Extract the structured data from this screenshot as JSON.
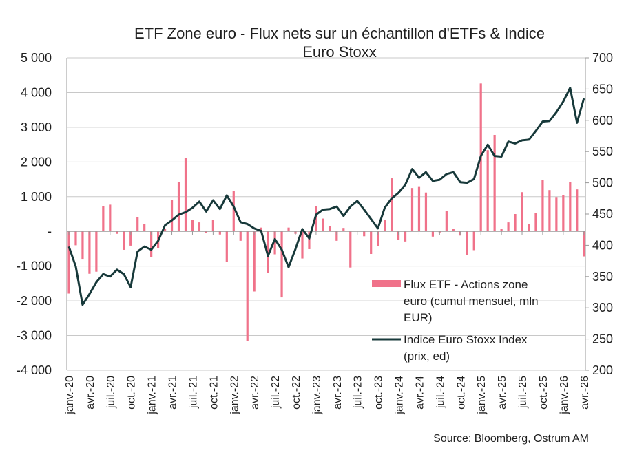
{
  "chart_data": {
    "type": "bar+line",
    "title_line1": "ETF Zone euro - Flux nets sur un échantillon d'ETFs & Indice",
    "title_line2": "Euro Stoxx",
    "source": "Source: Bloomberg, Ostrum AM",
    "grid": true,
    "legend_position": "bottom-right",
    "colors": {
      "bars": "#f0728a",
      "line": "#17393a",
      "grid": "#c8c8c8"
    },
    "left_axis": {
      "range": [
        -4000,
        5000
      ],
      "ticks": [
        5000,
        4000,
        3000,
        2000,
        1000,
        0,
        -1000,
        -2000,
        -3000,
        -4000
      ],
      "tick_labels": [
        "5 000",
        "4 000",
        "3 000",
        "2 000",
        "1 000",
        "-",
        "-1 000",
        "-2 000",
        "-3 000",
        "-4 000"
      ]
    },
    "right_axis": {
      "range": [
        200,
        700
      ],
      "ticks": [
        700,
        650,
        600,
        550,
        500,
        450,
        400,
        350,
        300,
        250,
        200
      ],
      "tick_labels": [
        "700",
        "650",
        "600",
        "550",
        "500",
        "450",
        "400",
        "350",
        "300",
        "250",
        "200"
      ]
    },
    "x_tick_labels": [
      "janv.-20",
      "avr.-20",
      "juil.-20",
      "oct.-20",
      "janv.-21",
      "avr.-21",
      "juil.-21",
      "oct.-21",
      "janv.-22",
      "avr.-22",
      "juil.-22",
      "oct.-22",
      "janv.-23",
      "avr.-23",
      "juil.-23",
      "oct.-23",
      "janv.-24",
      "avr.-24",
      "juil.-24",
      "oct.-24",
      "janv.-25",
      "avr.-25",
      "juil.-25",
      "oct.-25",
      "janv.-26",
      "avr.-26"
    ],
    "x_start": "2020-01",
    "x_end": "2026-04",
    "series": [
      {
        "name": "Flux ETF - Actions zone euro (cumul mensuel, mln EUR)",
        "legend_lines": [
          "Flux ETF - Actions zone",
          "euro (cumul mensuel, mln",
          "EUR)"
        ],
        "type": "bar",
        "axis": "left",
        "values": [
          -1790,
          -400,
          -810,
          -1220,
          -1160,
          730,
          770,
          -70,
          -530,
          -410,
          420,
          210,
          -740,
          -480,
          80,
          910,
          1420,
          2110,
          330,
          260,
          -50,
          340,
          -90,
          -870,
          1160,
          -270,
          -3150,
          -1730,
          110,
          -1200,
          -660,
          -1900,
          110,
          -70,
          -780,
          -510,
          720,
          370,
          145,
          -270,
          100,
          -1040,
          20,
          -140,
          -650,
          -430,
          330,
          1530,
          -250,
          -290,
          1250,
          1300,
          1120,
          -150,
          -30,
          590,
          80,
          -120,
          -670,
          -540,
          4260,
          2340,
          2780,
          80,
          260,
          500,
          1130,
          220,
          520,
          1490,
          1190,
          990,
          1050,
          1430,
          1210,
          -720
        ]
      },
      {
        "name": "Indice Euro Stoxx Index (prix, ed)",
        "legend_lines": [
          "Indice Euro Stoxx Index",
          "(prix, ed)"
        ],
        "type": "line",
        "axis": "right",
        "values": [
          398,
          366,
          305,
          322,
          341,
          354,
          350,
          361,
          354,
          333,
          390,
          398,
          393,
          407,
          432,
          440,
          449,
          453,
          460,
          470,
          454,
          472,
          458,
          480,
          462,
          437,
          434,
          427,
          423,
          383,
          410,
          393,
          365,
          394,
          426,
          411,
          449,
          457,
          458,
          462,
          447,
          462,
          471,
          457,
          442,
          427,
          460,
          475,
          484,
          497,
          522,
          508,
          517,
          503,
          505,
          514,
          517,
          501,
          500,
          506,
          543,
          561,
          543,
          542,
          566,
          563,
          568,
          569,
          583,
          598,
          599,
          613,
          630,
          652,
          596,
          635
        ]
      }
    ]
  }
}
